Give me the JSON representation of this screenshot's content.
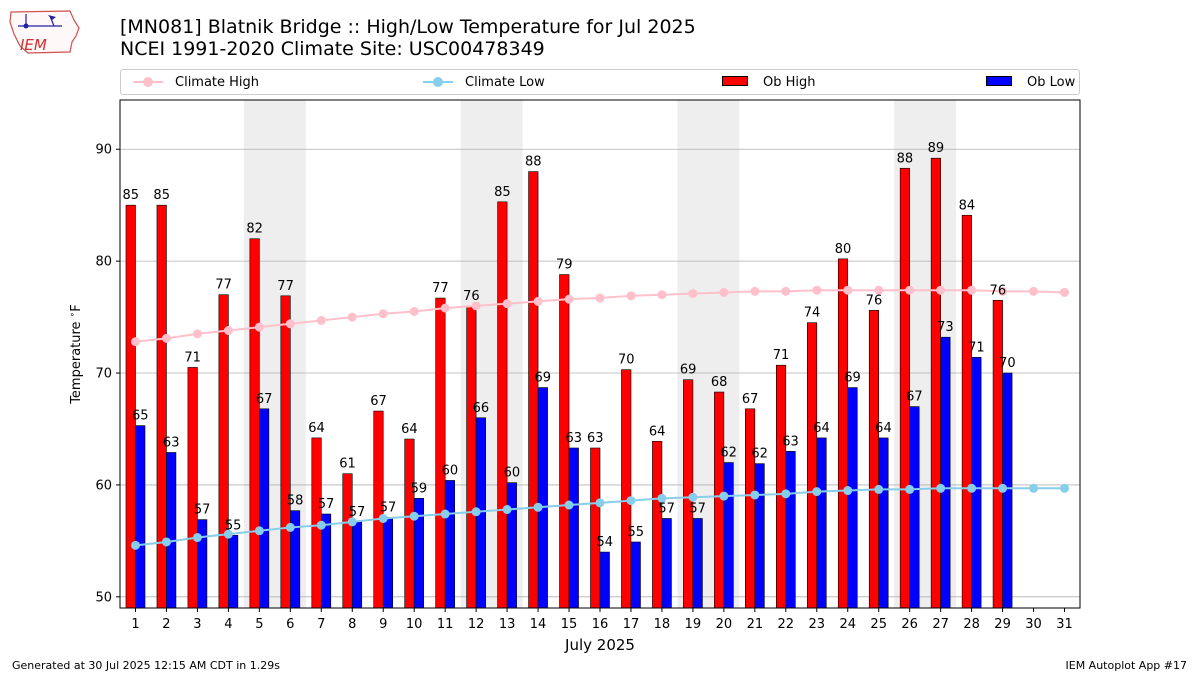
{
  "header": {
    "title_line1": "[MN081] Blatnik Bridge :: High/Low Temperature for Jul 2025",
    "title_line2": "NCEI 1991-2020 Climate Site: USC00478349"
  },
  "logo": {
    "text": "IEM"
  },
  "footer": {
    "generated": "Generated at 30 Jul 2025 12:15 AM CDT in 1.29s",
    "app": "IEM Autoplot App #17"
  },
  "colors": {
    "ob_high": "#ff0000",
    "ob_low": "#0000ff",
    "climate_high": "#ffc0cb",
    "climate_low": "#87ceeb",
    "weekend_shade": "#eeeeee",
    "grid": "#b0b0b0"
  },
  "chart_data": {
    "type": "bar",
    "xlabel": "July 2025",
    "ylabel": "Temperature $^\\circ$F",
    "ylim": [
      49,
      94.4
    ],
    "yticks": [
      50,
      60,
      70,
      80,
      90
    ],
    "grid": "horizontal",
    "legend_position": "top",
    "categories": [
      "1",
      "2",
      "3",
      "4",
      "5",
      "6",
      "7",
      "8",
      "9",
      "10",
      "11",
      "12",
      "13",
      "14",
      "15",
      "16",
      "17",
      "18",
      "19",
      "20",
      "21",
      "22",
      "23",
      "24",
      "25",
      "26",
      "27",
      "28",
      "29",
      "30",
      "31"
    ],
    "shaded_day_ranges": [
      [
        5,
        6
      ],
      [
        12,
        13
      ],
      [
        19,
        20
      ],
      [
        26,
        27
      ]
    ],
    "legend": [
      "Climate High",
      "Climate Low",
      "Ob High",
      "Ob Low"
    ],
    "series": [
      {
        "name": "Ob High",
        "kind": "bar",
        "values": [
          85,
          85,
          70.5,
          77,
          82,
          76.9,
          64.2,
          61,
          66.6,
          64.1,
          76.7,
          76,
          85.3,
          88,
          78.8,
          63.3,
          70.3,
          63.9,
          69.4,
          68.3,
          66.8,
          70.7,
          74.5,
          80.2,
          75.6,
          88.3,
          89.2,
          84.1,
          76.5,
          null,
          null
        ],
        "labels": [
          "85",
          "85",
          "71",
          "77",
          "82",
          "77",
          "64",
          "61",
          "67",
          "64",
          "77",
          "76",
          "85",
          "88",
          "79",
          "63",
          "70",
          "64",
          "69",
          "68",
          "67",
          "71",
          "74",
          "80",
          "76",
          "88",
          "89",
          "84",
          "76",
          null,
          null
        ]
      },
      {
        "name": "Ob Low",
        "kind": "bar",
        "values": [
          65.3,
          62.9,
          56.9,
          55.5,
          66.8,
          57.7,
          57.4,
          56.7,
          57.1,
          58.8,
          60.4,
          66,
          60.2,
          68.7,
          63.3,
          54,
          54.9,
          57,
          57,
          62,
          61.9,
          63,
          64.2,
          68.7,
          64.2,
          67,
          73.2,
          71.4,
          70,
          null,
          null
        ],
        "labels": [
          "65",
          "63",
          "57",
          "55",
          "67",
          "58",
          "57",
          "57",
          "57",
          "59",
          "60",
          "66",
          "60",
          "69",
          "63",
          "54",
          "55",
          "57",
          "57",
          "62",
          "62",
          "63",
          "64",
          "69",
          "64",
          "67",
          "73",
          "71",
          "70",
          null,
          null
        ]
      },
      {
        "name": "Climate High",
        "kind": "line",
        "values": [
          72.8,
          73.1,
          73.5,
          73.8,
          74.1,
          74.4,
          74.7,
          75,
          75.3,
          75.5,
          75.8,
          76,
          76.2,
          76.4,
          76.6,
          76.7,
          76.9,
          77,
          77.1,
          77.2,
          77.3,
          77.3,
          77.4,
          77.4,
          77.4,
          77.4,
          77.4,
          77.4,
          77.3,
          77.3,
          77.2
        ]
      },
      {
        "name": "Climate Low",
        "kind": "line",
        "values": [
          54.6,
          54.9,
          55.3,
          55.6,
          55.9,
          56.2,
          56.4,
          56.7,
          57,
          57.2,
          57.4,
          57.6,
          57.8,
          58,
          58.2,
          58.4,
          58.6,
          58.8,
          58.9,
          59,
          59.1,
          59.2,
          59.4,
          59.5,
          59.6,
          59.6,
          59.7,
          59.7,
          59.7,
          59.7,
          59.7
        ]
      }
    ]
  }
}
